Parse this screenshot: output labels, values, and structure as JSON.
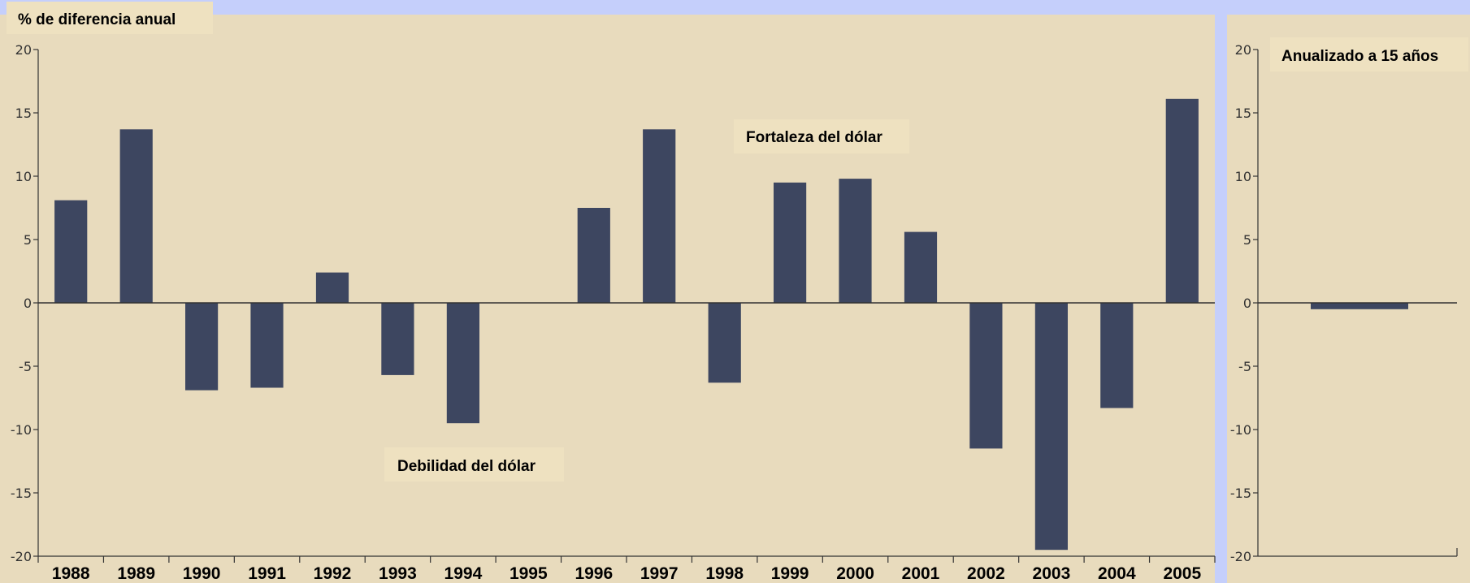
{
  "colors": {
    "background": "#c5cffb",
    "panel": "#e8dbbd",
    "label_box": "#eee1c0",
    "bar": "#3d4660",
    "axis": "#333333"
  },
  "chart_data": [
    {
      "type": "bar",
      "title": "% de diferencia anual",
      "categories": [
        "1988",
        "1989",
        "1990",
        "1991",
        "1992",
        "1993",
        "1994",
        "1995",
        "1996",
        "1997",
        "1998",
        "1999",
        "2000",
        "2001",
        "2002",
        "2003",
        "2004",
        "2005"
      ],
      "values": [
        8.1,
        13.7,
        -6.9,
        -6.7,
        2.4,
        -5.7,
        -9.5,
        0,
        7.5,
        13.7,
        -6.3,
        9.5,
        9.8,
        5.6,
        -11.5,
        -19.5,
        -8.3,
        16.1
      ],
      "ylim": [
        -20,
        20
      ],
      "yticks": [
        20,
        15,
        10,
        5,
        0,
        -5,
        -10,
        -15,
        -20
      ],
      "annotations": [
        "Fortaleza del dólar",
        "Debilidad del dólar"
      ],
      "grid": false
    },
    {
      "type": "bar",
      "title": "Anualizado a 15 años",
      "categories": [
        ""
      ],
      "values": [
        -0.5
      ],
      "ylim": [
        -20,
        20
      ],
      "yticks": [
        20,
        15,
        10,
        5,
        0,
        -5,
        -10,
        -15,
        -20
      ],
      "grid": false
    }
  ]
}
